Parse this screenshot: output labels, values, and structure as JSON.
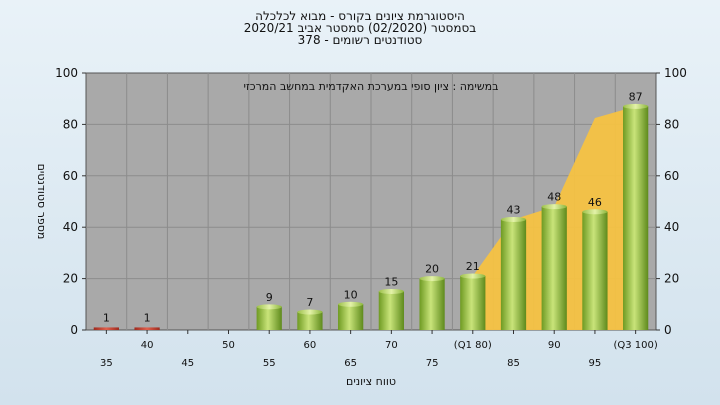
{
  "chart_data": {
    "type": "bar",
    "title": [
      "היסטוגרמת ציונים בקורס - מבוא לכלכלה",
      "בסמסטר  (02/2020)  סמסטר אביב 2020/21",
      "סטודנטים רשומים - 378"
    ],
    "annotation": "במשימה : ציון סופי במערכת האקדמית במחשב המרכזי",
    "xlabel": "טווח ציונים",
    "ylabel": "מספר סטודנטים",
    "ylim": [
      0,
      100
    ],
    "yticks": [
      0,
      20,
      40,
      60,
      80,
      100
    ],
    "grid": true,
    "categories": [
      "35",
      "40",
      "45",
      "50",
      "55",
      "60",
      "65",
      "70",
      "75",
      "(Q1 80)",
      "85",
      "90",
      "95",
      "(Q3 100)"
    ],
    "values": [
      1,
      1,
      0,
      0,
      9,
      7,
      10,
      15,
      20,
      21,
      43,
      48,
      46,
      87
    ],
    "data_labels": [
      "1",
      "1",
      "",
      "",
      "9",
      "7",
      "10",
      "15",
      "20",
      "21",
      "43",
      "48",
      "46",
      "87"
    ],
    "bar_colors": [
      "#c0392b",
      "#c0392b",
      "#8ab53a",
      "#8ab53a",
      "#8ab53a",
      "#8ab53a",
      "#8ab53a",
      "#8ab53a",
      "#8ab53a",
      "#8ab53a",
      "#8ab53a",
      "#8ab53a",
      "#8ab53a",
      "#8ab53a"
    ],
    "highlight_area": {
      "from_category": "(Q1 80)",
      "to_category": "(Q3 100)",
      "color": "#f5c242"
    }
  }
}
